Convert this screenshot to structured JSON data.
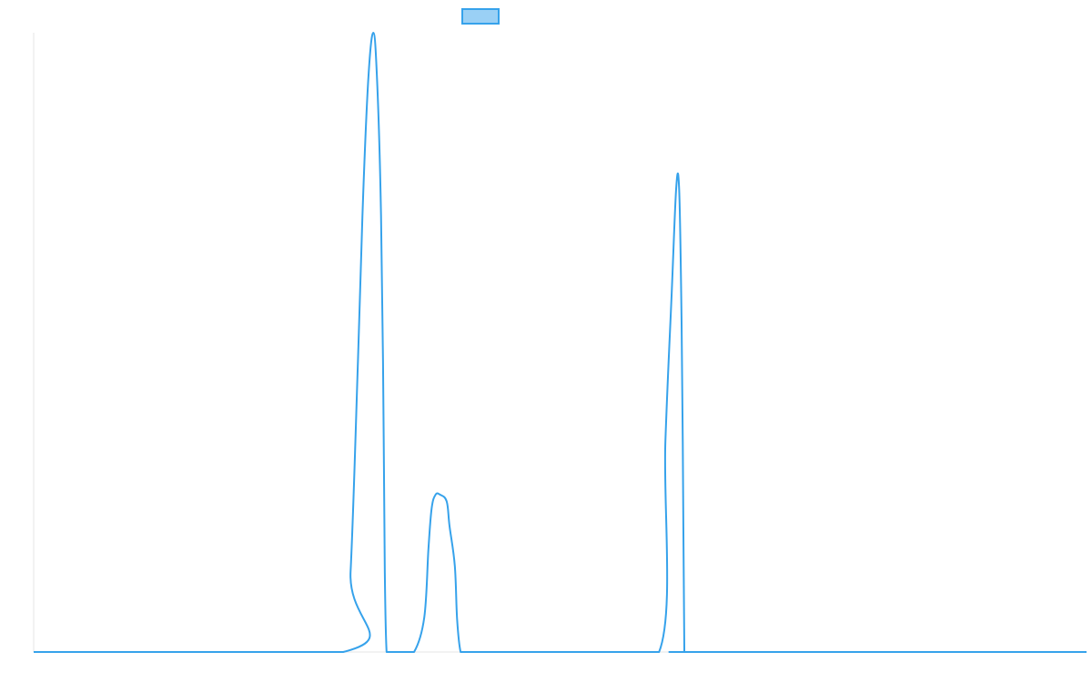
{
  "colors": {
    "series_line": "#36a2eb",
    "series_fill": "#9ad0f5",
    "axis_line": "#e5e5e5",
    "background": "#ffffff"
  },
  "chart_data": {
    "type": "line",
    "title": "",
    "xlabel": "",
    "ylabel": "",
    "grid": false,
    "legend": {
      "position": "top-center",
      "entries": [
        ""
      ]
    },
    "xlim": [
      0,
      1
    ],
    "ylim": [
      0,
      1
    ],
    "series": [
      {
        "x": [
          0.0,
          0.294,
          0.301,
          0.308,
          0.313,
          0.318,
          0.3226,
          0.326,
          0.3295,
          0.3318,
          0.3335,
          0.3352,
          0.3377,
          0.341,
          0.3446,
          0.352,
          0.3613,
          0.371,
          0.375,
          0.378,
          0.3817,
          0.386,
          0.3923,
          0.395,
          0.4,
          0.4022,
          0.4055,
          0.4092,
          0.4133,
          0.421,
          0.432,
          0.52,
          0.594,
          0.6,
          0.606,
          0.6103,
          0.613,
          0.615,
          0.6165,
          0.618,
          0.6196,
          0.622,
          0.626,
          0.63,
          0.634,
          1.0
        ],
        "y": [
          0.0,
          0.0,
          0.13,
          0.47,
          0.74,
          0.93,
          1.0,
          0.93,
          0.74,
          0.47,
          0.13,
          0.0,
          0.0,
          0.0,
          0.0,
          0.0,
          0.0,
          0.056,
          0.168,
          0.232,
          0.254,
          0.254,
          0.243,
          0.203,
          0.139,
          0.052,
          0.0,
          0.0,
          0.0,
          0.0,
          0.0,
          0.0,
          0.0,
          0.34,
          0.58,
          0.75,
          0.75,
          0.58,
          0.34,
          0.0,
          0.0,
          0.0,
          0.0,
          0.0,
          0.0,
          0.0
        ]
      }
    ]
  }
}
